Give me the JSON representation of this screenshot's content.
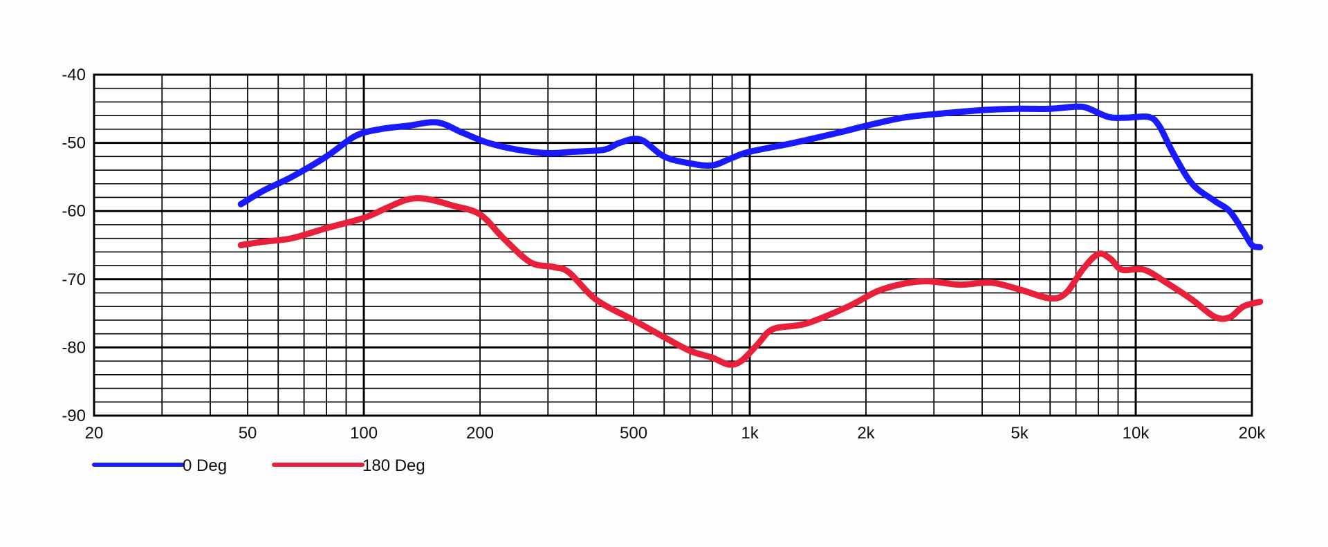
{
  "chart_data": {
    "type": "line",
    "title": "",
    "xlabel": "",
    "ylabel": "",
    "x_scale": "log",
    "xlim": [
      20,
      20000
    ],
    "ylim": [
      -90,
      -40
    ],
    "x_ticks": [
      20,
      50,
      100,
      200,
      500,
      1000,
      2000,
      5000,
      10000,
      20000
    ],
    "x_tick_labels": [
      "20",
      "50",
      "100",
      "200",
      "500",
      "1k",
      "2k",
      "5k",
      "10k",
      "20k"
    ],
    "y_ticks": [
      -40,
      -50,
      -60,
      -70,
      -80,
      -90
    ],
    "y_tick_labels": [
      "-40",
      "-50",
      "-60",
      "-70",
      "-80",
      "-90"
    ],
    "grid": true,
    "legend_position": "bottom-left",
    "series": [
      {
        "name": "0 Deg",
        "color": "#1a1aff",
        "points": [
          [
            48,
            -59
          ],
          [
            55,
            -57
          ],
          [
            65,
            -55
          ],
          [
            80,
            -52
          ],
          [
            95,
            -49
          ],
          [
            110,
            -48
          ],
          [
            130,
            -47.5
          ],
          [
            155,
            -47
          ],
          [
            180,
            -48.5
          ],
          [
            210,
            -50
          ],
          [
            250,
            -51
          ],
          [
            300,
            -51.5
          ],
          [
            350,
            -51.3
          ],
          [
            420,
            -51
          ],
          [
            460,
            -50
          ],
          [
            520,
            -49.5
          ],
          [
            600,
            -52
          ],
          [
            700,
            -53
          ],
          [
            800,
            -53.3
          ],
          [
            900,
            -52.2
          ],
          [
            1000,
            -51.3
          ],
          [
            1300,
            -50
          ],
          [
            1700,
            -48.5
          ],
          [
            2000,
            -47.5
          ],
          [
            2500,
            -46.3
          ],
          [
            3000,
            -45.8
          ],
          [
            4000,
            -45.2
          ],
          [
            5000,
            -45
          ],
          [
            6000,
            -45
          ],
          [
            7000,
            -44.7
          ],
          [
            7500,
            -44.9
          ],
          [
            8500,
            -46.2
          ],
          [
            9500,
            -46.3
          ],
          [
            10800,
            -46.2
          ],
          [
            11500,
            -47.5
          ],
          [
            12500,
            -51.5
          ],
          [
            14000,
            -56
          ],
          [
            16000,
            -58.5
          ],
          [
            17500,
            -60
          ],
          [
            19000,
            -63
          ],
          [
            20000,
            -65
          ],
          [
            21000,
            -65.3
          ]
        ]
      },
      {
        "name": "180 Deg",
        "color": "#e8203a",
        "points": [
          [
            48,
            -65
          ],
          [
            55,
            -64.5
          ],
          [
            65,
            -64
          ],
          [
            80,
            -62.5
          ],
          [
            100,
            -61
          ],
          [
            115,
            -59.5
          ],
          [
            130,
            -58.3
          ],
          [
            145,
            -58.2
          ],
          [
            170,
            -59.2
          ],
          [
            200,
            -60.5
          ],
          [
            230,
            -64
          ],
          [
            270,
            -67.5
          ],
          [
            310,
            -68.2
          ],
          [
            340,
            -69
          ],
          [
            400,
            -73
          ],
          [
            500,
            -76
          ],
          [
            600,
            -78.5
          ],
          [
            700,
            -80.5
          ],
          [
            800,
            -81.5
          ],
          [
            880,
            -82.5
          ],
          [
            950,
            -82
          ],
          [
            1050,
            -79.5
          ],
          [
            1150,
            -77.3
          ],
          [
            1400,
            -76.5
          ],
          [
            1800,
            -74
          ],
          [
            2200,
            -71.5
          ],
          [
            2800,
            -70.3
          ],
          [
            3500,
            -70.8
          ],
          [
            4200,
            -70.5
          ],
          [
            5000,
            -71.5
          ],
          [
            6000,
            -72.8
          ],
          [
            6600,
            -72
          ],
          [
            7300,
            -68.5
          ],
          [
            8000,
            -66.3
          ],
          [
            8600,
            -67
          ],
          [
            9200,
            -68.6
          ],
          [
            10500,
            -68.6
          ],
          [
            12000,
            -70.5
          ],
          [
            14000,
            -73
          ],
          [
            16000,
            -75.5
          ],
          [
            17500,
            -75.6
          ],
          [
            19000,
            -74
          ],
          [
            21000,
            -73.3
          ]
        ]
      }
    ]
  }
}
